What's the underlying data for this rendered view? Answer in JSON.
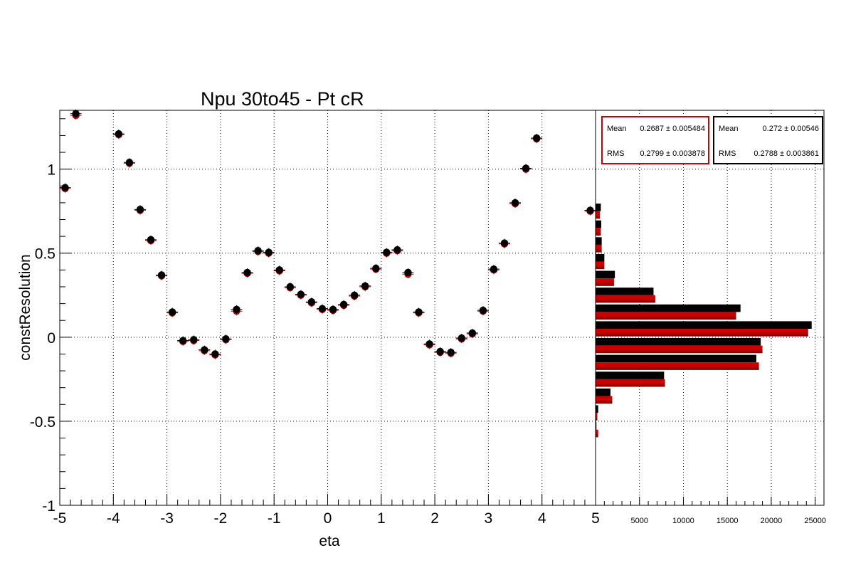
{
  "title": "Npu 30to45 - Pt cR",
  "colors": {
    "black_series": "#000000",
    "red_series": "#cc0000",
    "red_dark": "#7a0000"
  },
  "chart_data": [
    {
      "type": "scatter",
      "title": "Npu 30to45 - Pt cR",
      "xlabel": "eta",
      "ylabel": "constResolution",
      "xlim": [
        -5,
        5
      ],
      "ylim": [
        -1,
        1.35
      ],
      "grid": true,
      "xticks": [
        "-5",
        "-4",
        "-3",
        "-2",
        "-1",
        "0",
        "1",
        "2",
        "3",
        "4",
        "5"
      ],
      "yticks": [
        "-1",
        "-0.5",
        "0",
        "0.5",
        "1"
      ],
      "series": [
        {
          "color": "#000000",
          "x": [
            -4.9,
            -4.7,
            -3.9,
            -3.7,
            -3.5,
            -3.3,
            -3.1,
            -2.9,
            -2.7,
            -2.5,
            -2.3,
            -2.1,
            -1.9,
            -1.7,
            -1.5,
            -1.3,
            -1.1,
            -0.9,
            -0.7,
            -0.5,
            -0.3,
            -0.1,
            0.1,
            0.3,
            0.5,
            0.7,
            0.9,
            1.1,
            1.3,
            1.5,
            1.7,
            1.9,
            2.1,
            2.3,
            2.5,
            2.7,
            2.9,
            3.1,
            3.3,
            3.5,
            3.7,
            3.9,
            4.9
          ],
          "y": [
            0.89,
            1.33,
            1.21,
            1.04,
            0.76,
            0.58,
            0.37,
            0.15,
            -0.02,
            -0.015,
            -0.075,
            -0.1,
            -0.01,
            0.165,
            0.385,
            0.515,
            0.505,
            0.4,
            0.3,
            0.255,
            0.21,
            0.17,
            0.165,
            0.195,
            0.25,
            0.305,
            0.41,
            0.505,
            0.52,
            0.385,
            0.15,
            -0.04,
            -0.085,
            -0.09,
            -0.005,
            0.025,
            0.16,
            0.405,
            0.56,
            0.8,
            1.005,
            1.185,
            0.755
          ]
        },
        {
          "color": "#cc0000",
          "x": [
            -4.9,
            -4.7,
            -3.9,
            -3.7,
            -3.5,
            -3.3,
            -3.1,
            -2.9,
            -2.7,
            -2.5,
            -2.3,
            -2.1,
            -1.9,
            -1.7,
            -1.5,
            -1.3,
            -1.1,
            -0.9,
            -0.7,
            -0.5,
            -0.3,
            -0.1,
            0.1,
            0.3,
            0.5,
            0.7,
            0.9,
            1.1,
            1.3,
            1.5,
            1.7,
            1.9,
            2.1,
            2.3,
            2.5,
            2.7,
            2.9,
            3.1,
            3.3,
            3.5,
            3.7,
            3.9,
            4.9
          ],
          "y": [
            0.885,
            1.32,
            1.205,
            1.035,
            0.755,
            0.575,
            0.365,
            0.145,
            -0.025,
            -0.02,
            -0.08,
            -0.105,
            -0.015,
            0.155,
            0.38,
            0.51,
            0.5,
            0.395,
            0.295,
            0.25,
            0.205,
            0.165,
            0.16,
            0.19,
            0.245,
            0.3,
            0.405,
            0.5,
            0.515,
            0.375,
            0.145,
            -0.045,
            -0.09,
            -0.095,
            -0.01,
            0.02,
            0.155,
            0.4,
            0.555,
            0.795,
            1.0,
            1.18,
            0.75
          ]
        }
      ]
    },
    {
      "type": "bar",
      "orientation": "horizontal",
      "xlim": [
        0,
        26000
      ],
      "xticks": [
        "5000",
        "10000",
        "15000",
        "20000",
        "25000"
      ],
      "bin_edges": [
        -1,
        -0.9,
        -0.8,
        -0.7,
        -0.6,
        -0.5,
        -0.4,
        -0.3,
        -0.2,
        -0.1,
        0,
        0.1,
        0.2,
        0.3,
        0.4,
        0.5,
        0.6,
        0.7,
        0.8,
        0.9,
        1,
        1.1,
        1.2,
        1.3
      ],
      "series": [
        {
          "color": "#000000",
          "values": [
            0,
            0,
            0,
            0,
            100,
            300,
            1700,
            7800,
            18300,
            18800,
            24600,
            16500,
            6600,
            2200,
            1000,
            700,
            650,
            600,
            0,
            0,
            0,
            0,
            0
          ],
          "stats": {
            "mean_label": "Mean",
            "mean": "0.272 ± 0.00546",
            "rms_label": "RMS",
            "rms": "0.2788 ± 0.003861"
          }
        },
        {
          "color": "#cc0000",
          "values": [
            0,
            0,
            0,
            0,
            300,
            200,
            1900,
            7900,
            18600,
            19000,
            24200,
            16000,
            6800,
            2100,
            1000,
            700,
            600,
            500,
            0,
            0,
            0,
            0,
            0
          ],
          "stats": {
            "mean_label": "Mean",
            "mean": "0.2687 ± 0.005484",
            "rms_label": "RMS",
            "rms": "0.2799 ± 0.003878"
          }
        }
      ]
    }
  ]
}
